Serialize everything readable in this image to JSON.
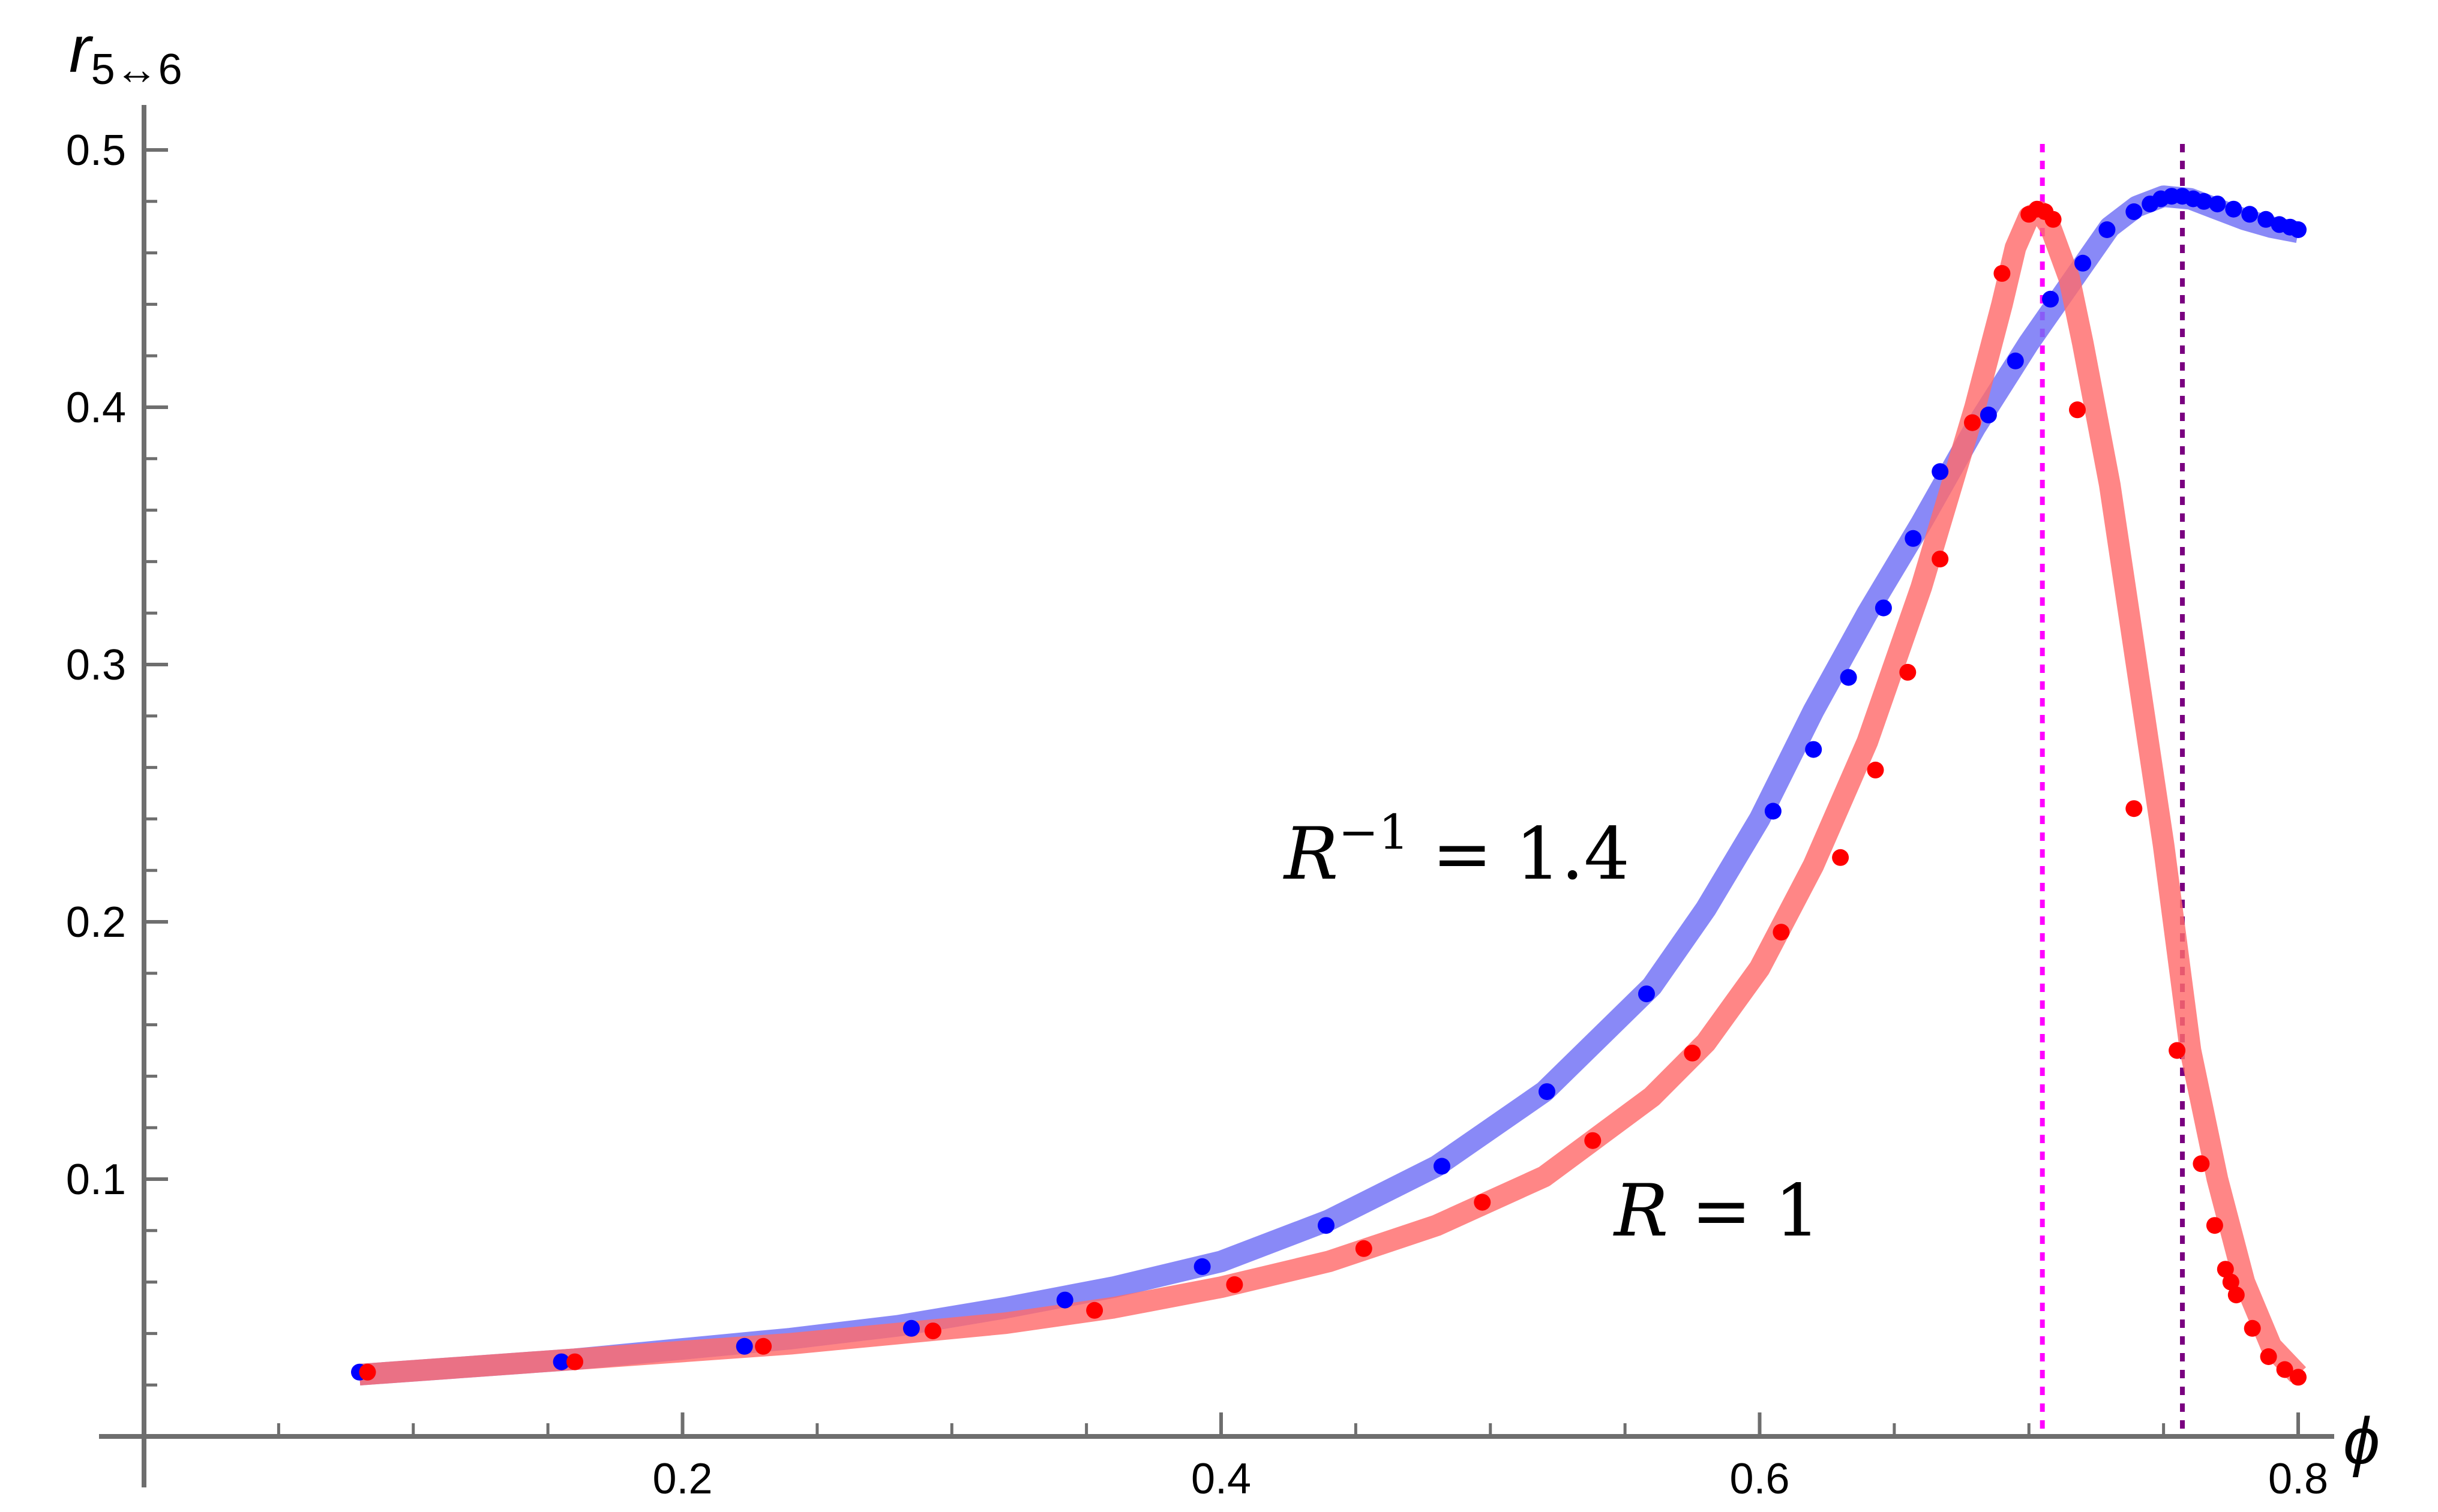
{
  "chart_data": {
    "type": "line",
    "xlabel": "ϕ",
    "ylabel_main": "r",
    "ylabel_sub": "5↔6",
    "xlim": [
      0.0,
      0.8
    ],
    "ylim": [
      0.0,
      0.5
    ],
    "grid": false,
    "x_ticks": [
      0.2,
      0.4,
      0.6,
      0.8
    ],
    "x_tick_labels": [
      "0.2",
      "0.4",
      "0.6",
      "0.8"
    ],
    "y_ticks": [
      0.1,
      0.2,
      0.3,
      0.4,
      0.5
    ],
    "y_tick_labels": [
      "0.1",
      "0.2",
      "0.3",
      "0.4",
      "0.5"
    ],
    "annotations": [
      {
        "text_main": "R",
        "text_sup": "−1",
        "text_tail": " = 1.4",
        "series": "R^-1 = 1.4"
      },
      {
        "text_main": "R",
        "text_sup": "",
        "text_tail": " = 1",
        "series": "R = 1"
      }
    ],
    "series": [
      {
        "name": "R = 1",
        "color": "#ff0000",
        "line_color": "#ff6b6b",
        "line_points": [
          [
            0.08,
            0.024
          ],
          [
            0.12,
            0.027
          ],
          [
            0.16,
            0.03
          ],
          [
            0.2,
            0.033
          ],
          [
            0.24,
            0.036
          ],
          [
            0.28,
            0.04
          ],
          [
            0.32,
            0.044
          ],
          [
            0.36,
            0.05
          ],
          [
            0.4,
            0.058
          ],
          [
            0.44,
            0.068
          ],
          [
            0.48,
            0.082
          ],
          [
            0.52,
            0.101
          ],
          [
            0.56,
            0.132
          ],
          [
            0.58,
            0.153
          ],
          [
            0.6,
            0.182
          ],
          [
            0.62,
            0.222
          ],
          [
            0.64,
            0.27
          ],
          [
            0.66,
            0.33
          ],
          [
            0.68,
            0.4
          ],
          [
            0.69,
            0.44
          ],
          [
            0.695,
            0.462
          ],
          [
            0.7,
            0.474
          ],
          [
            0.704,
            0.476
          ],
          [
            0.708,
            0.47
          ],
          [
            0.715,
            0.45
          ],
          [
            0.72,
            0.425
          ],
          [
            0.73,
            0.37
          ],
          [
            0.74,
            0.3
          ],
          [
            0.75,
            0.23
          ],
          [
            0.76,
            0.15
          ],
          [
            0.77,
            0.1
          ],
          [
            0.78,
            0.06
          ],
          [
            0.79,
            0.035
          ],
          [
            0.8,
            0.024
          ]
        ],
        "points": [
          [
            0.083,
            0.025
          ],
          [
            0.16,
            0.029
          ],
          [
            0.23,
            0.035
          ],
          [
            0.293,
            0.041
          ],
          [
            0.353,
            0.049
          ],
          [
            0.405,
            0.059
          ],
          [
            0.453,
            0.073
          ],
          [
            0.497,
            0.091
          ],
          [
            0.538,
            0.115
          ],
          [
            0.575,
            0.149
          ],
          [
            0.608,
            0.196
          ],
          [
            0.63,
            0.225
          ],
          [
            0.643,
            0.259
          ],
          [
            0.655,
            0.297
          ],
          [
            0.667,
            0.341
          ],
          [
            0.679,
            0.394
          ],
          [
            0.69,
            0.452
          ],
          [
            0.7,
            0.475
          ],
          [
            0.703,
            0.477
          ],
          [
            0.706,
            0.476
          ],
          [
            0.709,
            0.473
          ],
          [
            0.718,
            0.399
          ],
          [
            0.739,
            0.244
          ],
          [
            0.755,
            0.15
          ],
          [
            0.764,
            0.106
          ],
          [
            0.769,
            0.082
          ],
          [
            0.773,
            0.065
          ],
          [
            0.775,
            0.06
          ],
          [
            0.777,
            0.055
          ],
          [
            0.783,
            0.042
          ],
          [
            0.789,
            0.031
          ],
          [
            0.795,
            0.026
          ],
          [
            0.8,
            0.023
          ]
        ]
      },
      {
        "name": "R^-1 = 1.4",
        "color": "#0000ff",
        "line_color": "#6f6ff5",
        "line_points": [
          [
            0.08,
            0.024
          ],
          [
            0.12,
            0.027
          ],
          [
            0.16,
            0.03
          ],
          [
            0.2,
            0.034
          ],
          [
            0.24,
            0.038
          ],
          [
            0.28,
            0.043
          ],
          [
            0.32,
            0.05
          ],
          [
            0.36,
            0.058
          ],
          [
            0.4,
            0.068
          ],
          [
            0.44,
            0.084
          ],
          [
            0.48,
            0.105
          ],
          [
            0.52,
            0.134
          ],
          [
            0.56,
            0.175
          ],
          [
            0.58,
            0.205
          ],
          [
            0.6,
            0.24
          ],
          [
            0.62,
            0.282
          ],
          [
            0.64,
            0.32
          ],
          [
            0.66,
            0.355
          ],
          [
            0.68,
            0.392
          ],
          [
            0.7,
            0.425
          ],
          [
            0.72,
            0.455
          ],
          [
            0.73,
            0.47
          ],
          [
            0.74,
            0.478
          ],
          [
            0.75,
            0.482
          ],
          [
            0.76,
            0.481
          ],
          [
            0.77,
            0.477
          ],
          [
            0.78,
            0.473
          ],
          [
            0.79,
            0.47
          ],
          [
            0.8,
            0.468
          ]
        ],
        "points": [
          [
            0.08,
            0.025
          ],
          [
            0.155,
            0.029
          ],
          [
            0.223,
            0.035
          ],
          [
            0.285,
            0.042
          ],
          [
            0.342,
            0.053
          ],
          [
            0.393,
            0.066
          ],
          [
            0.439,
            0.082
          ],
          [
            0.482,
            0.105
          ],
          [
            0.521,
            0.134
          ],
          [
            0.558,
            0.172
          ],
          [
            0.605,
            0.243
          ],
          [
            0.62,
            0.267
          ],
          [
            0.633,
            0.295
          ],
          [
            0.646,
            0.322
          ],
          [
            0.657,
            0.349
          ],
          [
            0.667,
            0.375
          ],
          [
            0.685,
            0.397
          ],
          [
            0.695,
            0.418
          ],
          [
            0.708,
            0.442
          ],
          [
            0.72,
            0.456
          ],
          [
            0.729,
            0.469
          ],
          [
            0.739,
            0.476
          ],
          [
            0.745,
            0.479
          ],
          [
            0.749,
            0.481
          ],
          [
            0.753,
            0.482
          ],
          [
            0.757,
            0.482
          ],
          [
            0.761,
            0.481
          ],
          [
            0.765,
            0.48
          ],
          [
            0.77,
            0.479
          ],
          [
            0.776,
            0.477
          ],
          [
            0.782,
            0.475
          ],
          [
            0.788,
            0.473
          ],
          [
            0.793,
            0.471
          ],
          [
            0.797,
            0.47
          ],
          [
            0.8,
            0.469
          ]
        ]
      }
    ],
    "vertical_lines": [
      {
        "x": 0.705,
        "color": "#ff00ff",
        "style": "dotted"
      },
      {
        "x": 0.757,
        "color": "#7a0080",
        "style": "dotted"
      }
    ]
  }
}
